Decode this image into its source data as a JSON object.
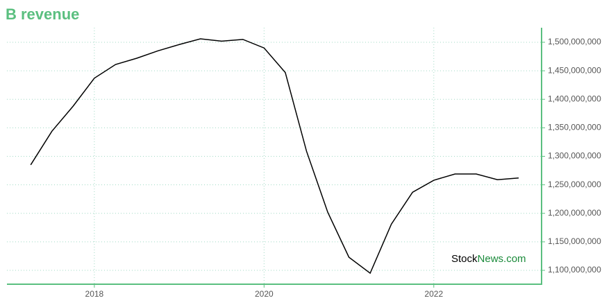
{
  "chart_data": {
    "type": "line",
    "title": "B revenue",
    "x": [
      2017.25,
      2017.5,
      2017.75,
      2018.0,
      2018.25,
      2018.5,
      2018.75,
      2019.0,
      2019.25,
      2019.5,
      2019.75,
      2020.0,
      2020.25,
      2020.5,
      2020.75,
      2021.0,
      2021.25,
      2021.5,
      2021.75,
      2022.0,
      2022.25,
      2022.5,
      2022.75,
      2023.0
    ],
    "series": [
      {
        "name": "B revenue",
        "color": "#000000",
        "values": [
          1285000000,
          1344000000,
          1388000000,
          1437000000,
          1461000000,
          1472000000,
          1485000000,
          1496000000,
          1506000000,
          1502000000,
          1505000000,
          1490000000,
          1447000000,
          1309000000,
          1202000000,
          1123000000,
          1095000000,
          1181000000,
          1237000000,
          1258000000,
          1269000000,
          1269000000,
          1259000000,
          1262000000
        ]
      }
    ],
    "xlim": [
      2016.97,
      2023.27
    ],
    "xticks": [
      2018,
      2020,
      2022
    ],
    "ylim": [
      1075700000,
      1525500000
    ],
    "yticks": [
      {
        "value": 1100000000,
        "label": "1,100,000,000"
      },
      {
        "value": 1150000000,
        "label": "1,150,000,000"
      },
      {
        "value": 1200000000,
        "label": "1,200,000,000"
      },
      {
        "value": 1250000000,
        "label": "1,250,000,000"
      },
      {
        "value": 1300000000,
        "label": "1,300,000,000"
      },
      {
        "value": 1350000000,
        "label": "1,350,000,000"
      },
      {
        "value": 1400000000,
        "label": "1,400,000,000"
      },
      {
        "value": 1450000000,
        "label": "1,450,000,000"
      },
      {
        "value": 1500000000,
        "label": "1,500,000,000"
      }
    ],
    "grid": true,
    "axis_color": "#5abf7f",
    "watermark": [
      "Stock",
      "News.com"
    ]
  }
}
